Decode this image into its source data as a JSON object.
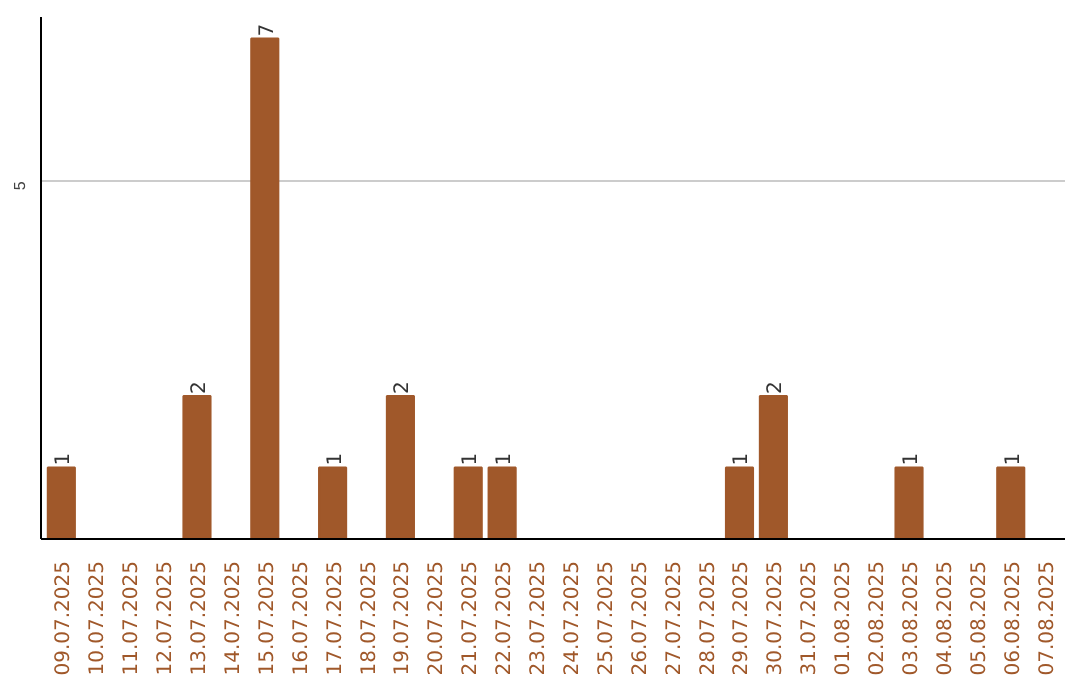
{
  "chart_data": {
    "type": "bar",
    "categories": [
      "09.07.2025",
      "10.07.2025",
      "11.07.2025",
      "12.07.2025",
      "13.07.2025",
      "14.07.2025",
      "15.07.2025",
      "16.07.2025",
      "17.07.2025",
      "18.07.2025",
      "19.07.2025",
      "20.07.2025",
      "21.07.2025",
      "22.07.2025",
      "23.07.2025",
      "24.07.2025",
      "25.07.2025",
      "26.07.2025",
      "27.07.2025",
      "28.07.2025",
      "29.07.2025",
      "30.07.2025",
      "31.07.2025",
      "01.08.2025",
      "02.08.2025",
      "03.08.2025",
      "04.08.2025",
      "05.08.2025",
      "06.08.2025",
      "07.08.2025"
    ],
    "values": [
      1,
      0,
      0,
      0,
      2,
      0,
      7,
      0,
      1,
      0,
      2,
      0,
      1,
      1,
      0,
      0,
      0,
      0,
      0,
      0,
      1,
      2,
      0,
      0,
      0,
      1,
      0,
      0,
      1,
      0
    ],
    "value_labels": [
      "1",
      null,
      null,
      null,
      "2",
      null,
      "7",
      null,
      "1",
      null,
      "2",
      null,
      "1",
      "1",
      null,
      null,
      null,
      null,
      null,
      null,
      "1",
      "2",
      null,
      null,
      null,
      "1",
      null,
      null,
      "1",
      null
    ],
    "color": "#a0582a",
    "ylim": [
      0,
      7.3
    ],
    "yticks": [
      5
    ],
    "grid": "y"
  }
}
